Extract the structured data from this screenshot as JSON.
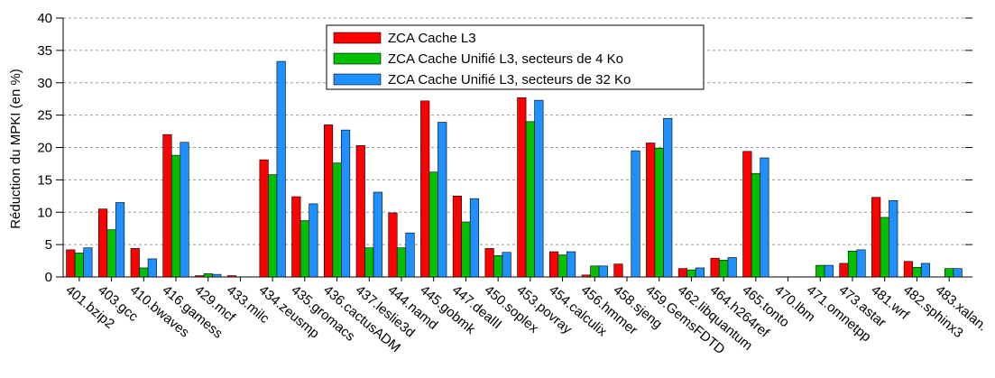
{
  "chart_data": {
    "type": "bar",
    "y_label": "Réduction du MPKI (en %)",
    "categories": [
      "401.bzip2",
      "403.gcc",
      "410.bwaves",
      "416.gamess",
      "429.mcf",
      "433.milc",
      "434.zeusmp",
      "435.gromacs",
      "436.cactusADM",
      "437.leslie3d",
      "444.namd",
      "445.gobmk",
      "447.dealII",
      "450.soplex",
      "453.povray",
      "454.calculix",
      "456.hmmer",
      "458.sjeng",
      "459.GemsFDTD",
      "462.libquantum",
      "464.h264ref",
      "465.tonto",
      "470.lbm",
      "471.omnetpp",
      "473.astar",
      "481.wrf",
      "482.sphinx3",
      "483.xalan."
    ],
    "series": [
      {
        "name": "ZCA Cache L3",
        "color": "#ff0000",
        "values": [
          4.2,
          10.5,
          4.4,
          22,
          0.2,
          0.2,
          18.1,
          12.4,
          23.5,
          20.3,
          9.9,
          27.2,
          12.5,
          4.4,
          27.7,
          3.9,
          0.3,
          2.0,
          20.7,
          1.3,
          2.9,
          19.4,
          0,
          0,
          2.1,
          12.3,
          2.4,
          0
        ]
      },
      {
        "name": "ZCA Cache Unifié L3, secteurs de 4 Ko",
        "color": "#00c000",
        "values": [
          3.7,
          7.3,
          1.4,
          18.8,
          0.5,
          0,
          15.8,
          8.7,
          17.6,
          4.5,
          4.5,
          16.2,
          8.5,
          3.3,
          24,
          3.4,
          1.7,
          0,
          19.9,
          1.1,
          2.6,
          16,
          0,
          1.8,
          4.0,
          9.2,
          1.5,
          1.3
        ]
      },
      {
        "name": "ZCA Cache Unifié L3, secteurs de 32 Ko",
        "color": "#1e90ff",
        "values": [
          4.5,
          11.5,
          2.8,
          20.8,
          0.4,
          0,
          33.3,
          11.3,
          22.7,
          13.1,
          6.8,
          23.9,
          12.1,
          3.8,
          27.3,
          3.9,
          1.7,
          19.5,
          24.5,
          1.4,
          3.0,
          18.4,
          0,
          1.8,
          4.2,
          11.8,
          2.1,
          1.3
        ]
      }
    ],
    "ylim": [
      0,
      40
    ],
    "yticks": [
      0,
      5,
      10,
      15,
      20,
      25,
      30,
      35,
      40
    ],
    "grid": true,
    "legend": "top"
  }
}
